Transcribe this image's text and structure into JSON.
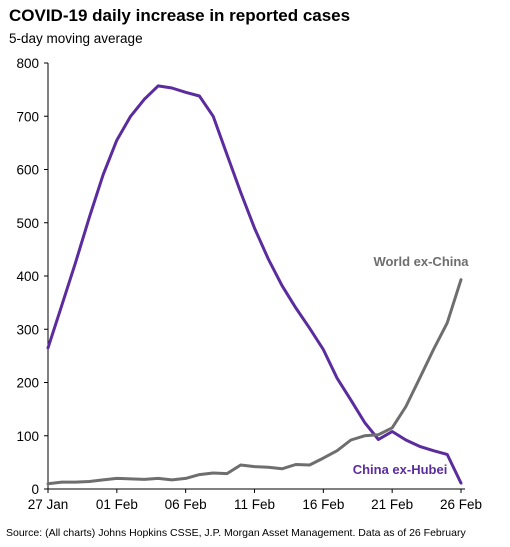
{
  "chart_data": {
    "type": "line",
    "title": "COVID-19 daily increase in reported cases",
    "subtitle": "5-day moving average",
    "source": "Source: (All charts) Johns Hopkins CSSE, J.P. Morgan Asset Management. Data as of 26 February",
    "ylim": [
      0,
      800
    ],
    "y_ticks": [
      0,
      100,
      200,
      300,
      400,
      500,
      600,
      700,
      800
    ],
    "x_tick_labels": [
      "27 Jan",
      "01 Feb",
      "06 Feb",
      "11 Feb",
      "16 Feb",
      "21 Feb",
      "26 Feb"
    ],
    "x": [
      "27 Jan",
      "28 Jan",
      "29 Jan",
      "30 Jan",
      "31 Jan",
      "01 Feb",
      "02 Feb",
      "03 Feb",
      "04 Feb",
      "05 Feb",
      "06 Feb",
      "07 Feb",
      "08 Feb",
      "09 Feb",
      "10 Feb",
      "11 Feb",
      "12 Feb",
      "13 Feb",
      "14 Feb",
      "15 Feb",
      "16 Feb",
      "17 Feb",
      "18 Feb",
      "19 Feb",
      "20 Feb",
      "21 Feb",
      "22 Feb",
      "23 Feb",
      "24 Feb",
      "25 Feb",
      "26 Feb"
    ],
    "grid": false,
    "series": [
      {
        "name": "China ex-Hubei",
        "color": "#5b2c9e",
        "values": [
          265,
          345,
          425,
          510,
          590,
          655,
          700,
          732,
          757,
          753,
          745,
          738,
          700,
          628,
          557,
          490,
          432,
          382,
          340,
          302,
          262,
          208,
          167,
          125,
          93,
          108,
          92,
          80,
          72,
          65,
          11
        ]
      },
      {
        "name": "World ex-China",
        "color": "#6e6e6e",
        "values": [
          10,
          13,
          13,
          14,
          17,
          20,
          19,
          18,
          20,
          17,
          20,
          27,
          30,
          29,
          45,
          42,
          41,
          38,
          46,
          45,
          58,
          72,
          92,
          100,
          102,
          115,
          155,
          208,
          262,
          312,
          393
        ]
      }
    ]
  }
}
